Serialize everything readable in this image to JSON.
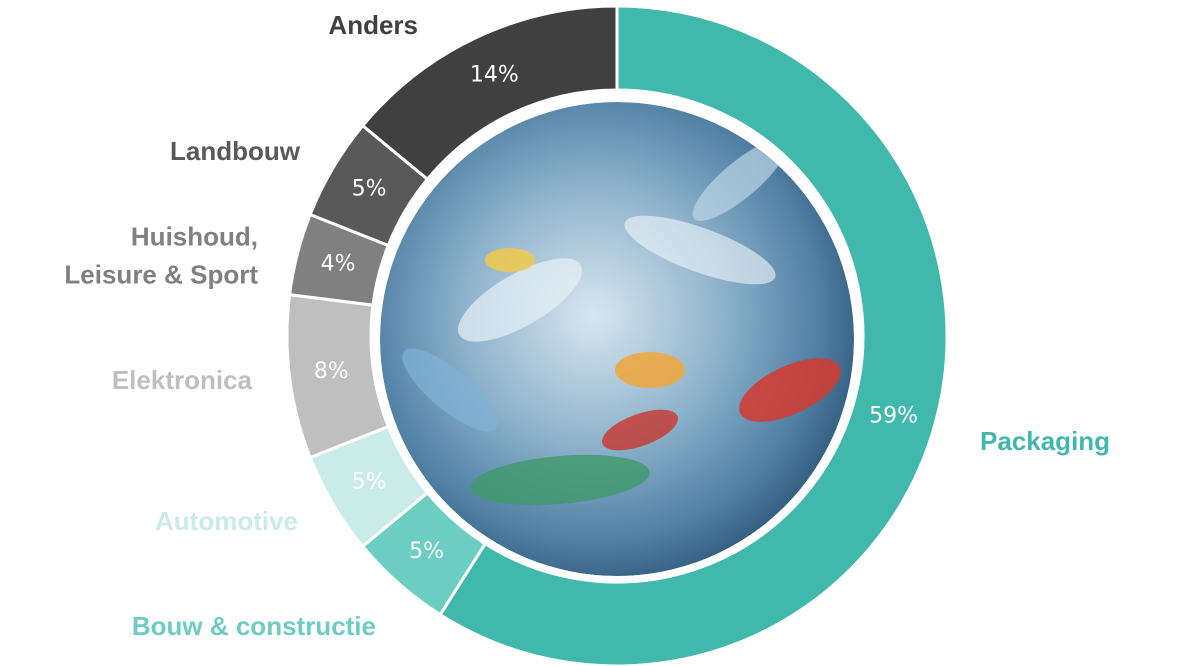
{
  "chart_data": {
    "type": "donut",
    "categories": [
      "Packaging",
      "Bouw & constructie",
      "Automotive",
      "Elektronica",
      "Huishoud,\nLeisure & Sport",
      "Landbouw",
      "Anders"
    ],
    "values": [
      59,
      5,
      5,
      8,
      4,
      5,
      14
    ],
    "value_labels": [
      "59%",
      "5%",
      "5%",
      "8%",
      "4%",
      "5%",
      "14%"
    ],
    "colors": [
      "#40b8ac",
      "#6ccdc3",
      "#c9ece8",
      "#bfbfbf",
      "#808080",
      "#595959",
      "#404040"
    ]
  }
}
